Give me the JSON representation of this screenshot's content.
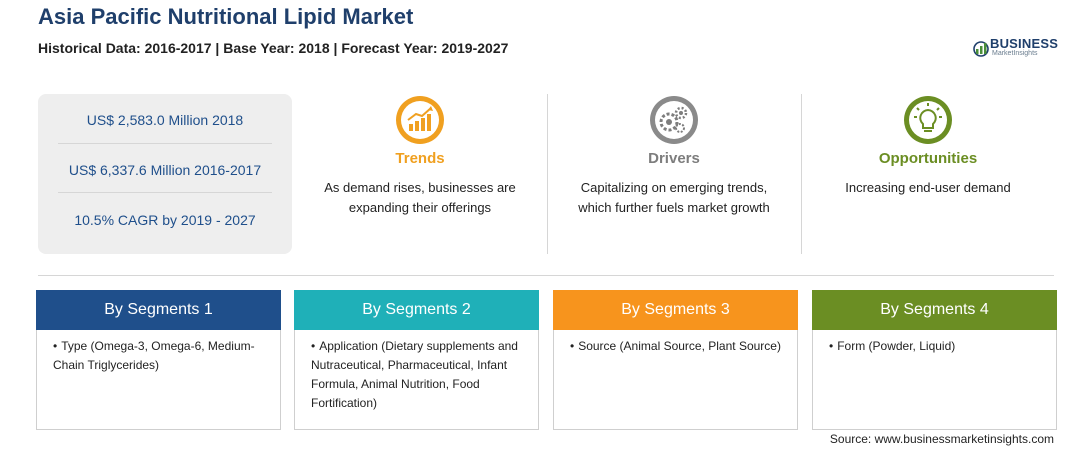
{
  "header": {
    "title": "Asia Pacific Nutritional Lipid Market",
    "subtitle": "Historical Data: 2016-2017 | Base Year: 2018 | Forecast Year: 2019-2027"
  },
  "logo": {
    "name": "BUSINESS",
    "tagline": "MarketInsights"
  },
  "stats": [
    "US$ 2,583.0 Million 2018",
    "US$ 6,337.6 Million 2016-2017",
    "10.5% CAGR by 2019 - 2027"
  ],
  "columns": [
    {
      "icon": "chart-growth-icon",
      "heading": "Trends",
      "color": "#f0a020",
      "text": "As demand rises, businesses are expanding their offerings"
    },
    {
      "icon": "gears-icon",
      "heading": "Drivers",
      "color": "#7d7d7d",
      "text": "Capitalizing on emerging trends, which further fuels market growth"
    },
    {
      "icon": "lightbulb-icon",
      "heading": "Opportunities",
      "color": "#6b8e23",
      "text": "Increasing end-user demand"
    }
  ],
  "segments": [
    {
      "title": "By Segments 1",
      "color": "#1f4f8b",
      "item": "Type (Omega-3, Omega-6, Medium-Chain Triglycerides)"
    },
    {
      "title": "By Segments 2",
      "color": "#1fb0b8",
      "item": "Application (Dietary supplements and Nutraceutical, Pharmaceutical, Infant Formula, Animal Nutrition, Food Fortification)"
    },
    {
      "title": "By Segments 3",
      "color": "#f7941d",
      "item": "Source (Animal Source, Plant Source)"
    },
    {
      "title": "By Segments 4",
      "color": "#6b8e23",
      "item": "Form (Powder, Liquid)"
    }
  ],
  "source": "Source: www.businessmarketinsights.com"
}
